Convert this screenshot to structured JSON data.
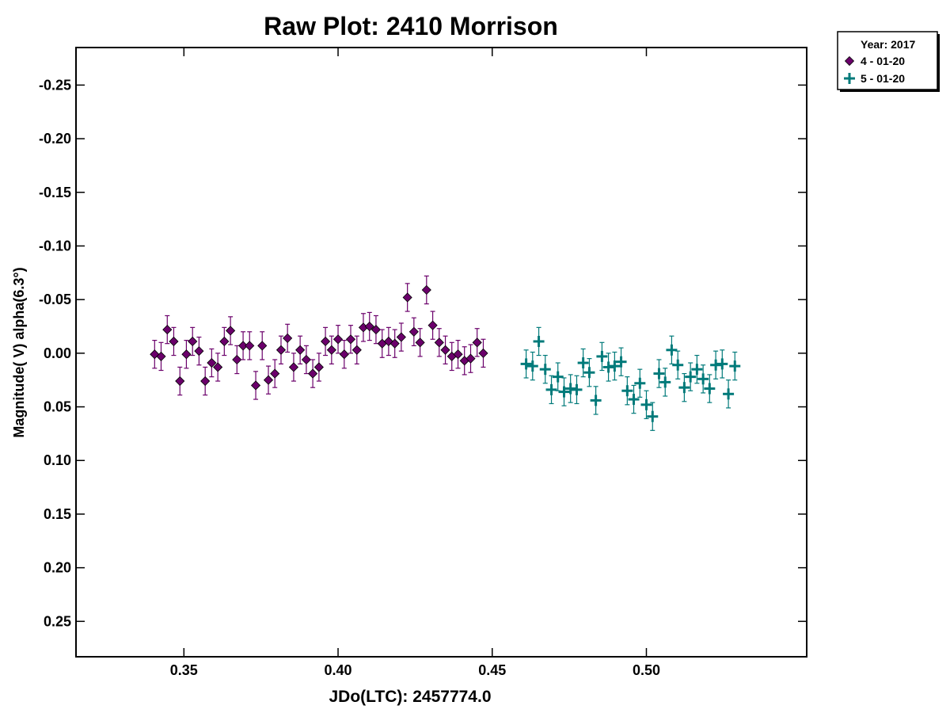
{
  "chart_data": {
    "type": "scatter",
    "title": "Raw Plot: 2410 Morrison",
    "xlabel": "JDo(LTC): 2457774.0",
    "ylabel": "Magnitude( V) alpha(6.3°)",
    "xlim": [
      0.315,
      0.552
    ],
    "ylim": [
      -0.285,
      0.283
    ],
    "y_inverted": true,
    "x_ticks": [
      0.35,
      0.4,
      0.45,
      0.5
    ],
    "x_tick_labels": [
      "0.35",
      "0.40",
      "0.45",
      "0.50"
    ],
    "y_ticks": [
      -0.25,
      -0.2,
      -0.15,
      -0.1,
      -0.05,
      0.0,
      0.05,
      0.1,
      0.15,
      0.2,
      0.25
    ],
    "y_tick_labels": [
      "-0.25",
      "-0.20",
      "-0.15",
      "-0.10",
      "-0.05",
      "0.00",
      "0.05",
      "0.10",
      "0.15",
      "0.20",
      "0.25"
    ],
    "grid": false,
    "legend": {
      "placement": "outside-top-right",
      "header": "Year: 2017",
      "entries": [
        "4 - 01-20",
        "5 - 01-20"
      ]
    },
    "series": [
      {
        "name": "4 - 01-20",
        "marker": "diamond",
        "color": "#6b006b",
        "error": 0.013,
        "x": [
          0.3405,
          0.3426,
          0.3446,
          0.3467,
          0.3487,
          0.3508,
          0.3528,
          0.3549,
          0.3569,
          0.359,
          0.361,
          0.3631,
          0.3651,
          0.3672,
          0.3692,
          0.3713,
          0.3733,
          0.3754,
          0.3774,
          0.3795,
          0.3815,
          0.3836,
          0.3856,
          0.3877,
          0.3897,
          0.3918,
          0.3938,
          0.3959,
          0.3979,
          0.4,
          0.402,
          0.4041,
          0.4061,
          0.4082,
          0.4102,
          0.4123,
          0.4143,
          0.4164,
          0.4184,
          0.4205,
          0.4225,
          0.4246,
          0.4266,
          0.4287,
          0.4307,
          0.4328,
          0.4348,
          0.4369,
          0.4389,
          0.441,
          0.443,
          0.4451,
          0.4471
        ],
        "y": [
          0.001,
          0.003,
          -0.022,
          -0.011,
          0.026,
          0.001,
          -0.011,
          -0.002,
          0.026,
          0.009,
          0.013,
          -0.011,
          -0.021,
          0.006,
          -0.007,
          -0.007,
          0.03,
          -0.007,
          0.025,
          0.019,
          -0.003,
          -0.014,
          0.013,
          -0.003,
          0.006,
          0.019,
          0.013,
          -0.011,
          -0.003,
          -0.013,
          0.001,
          -0.013,
          -0.003,
          -0.024,
          -0.025,
          -0.022,
          -0.009,
          -0.011,
          -0.009,
          -0.015,
          -0.052,
          -0.02,
          -0.01,
          -0.059,
          -0.026,
          -0.01,
          -0.003,
          0.003,
          0.001,
          0.007,
          0.005,
          -0.01,
          0.0
        ]
      },
      {
        "name": "5 - 01-20",
        "marker": "plus",
        "color": "#007a7a",
        "error": 0.013,
        "x": [
          0.461,
          0.4631,
          0.4651,
          0.4672,
          0.4692,
          0.4713,
          0.4733,
          0.4754,
          0.4774,
          0.4795,
          0.4815,
          0.4836,
          0.4856,
          0.4877,
          0.4897,
          0.4918,
          0.4938,
          0.4959,
          0.4979,
          0.5,
          0.502,
          0.5041,
          0.5061,
          0.5082,
          0.5102,
          0.5123,
          0.5143,
          0.5164,
          0.5184,
          0.5205,
          0.5225,
          0.5246,
          0.5266,
          0.5287
        ],
        "y": [
          0.01,
          0.012,
          -0.011,
          0.015,
          0.034,
          0.022,
          0.036,
          0.033,
          0.034,
          0.009,
          0.018,
          0.044,
          0.003,
          0.013,
          0.012,
          0.008,
          0.035,
          0.043,
          0.028,
          0.048,
          0.059,
          0.019,
          0.027,
          -0.003,
          0.011,
          0.032,
          0.022,
          0.015,
          0.024,
          0.033,
          0.011,
          0.01,
          0.038,
          0.012
        ]
      }
    ]
  }
}
